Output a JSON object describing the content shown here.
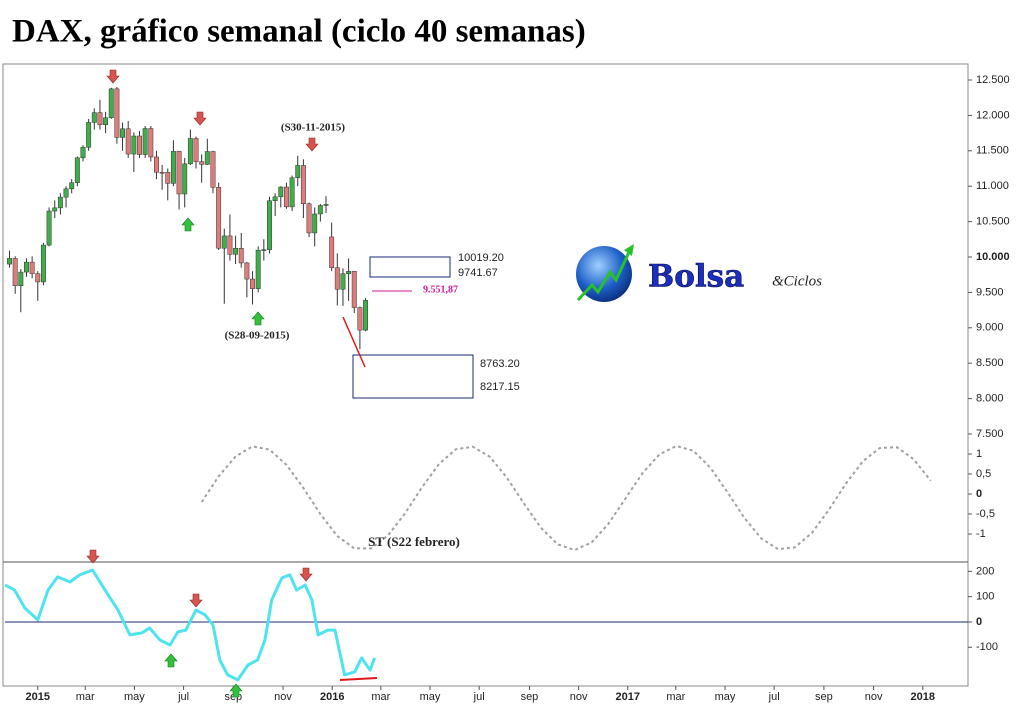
{
  "title": "DAX, gráfico semanal (ciclo 40 semanas)",
  "logo": {
    "name": "Bolsa",
    "sub": "&Ciclos"
  },
  "chart_data": [
    {
      "type": "candlestick",
      "x": [
        -5,
        -4,
        -3,
        -2,
        -1,
        0,
        1,
        2,
        3,
        4,
        5,
        6,
        7,
        8,
        9,
        10,
        11,
        12,
        13,
        14,
        15,
        16,
        17,
        18,
        19,
        20,
        21,
        22,
        23,
        24,
        25,
        26,
        27,
        28,
        29,
        30,
        31,
        32,
        33,
        34,
        35,
        36,
        37,
        38,
        39,
        40,
        41,
        42,
        43,
        44,
        45,
        46,
        47,
        48,
        49,
        50,
        51,
        52,
        53,
        54,
        55,
        56,
        57,
        58
      ],
      "open": [
        9900,
        9980,
        9594,
        9787,
        9927,
        9765,
        9648,
        10168,
        10649,
        10694,
        10846,
        10963,
        11050,
        11401,
        11550,
        11901,
        12039,
        11868,
        11967,
        12375,
        11689,
        11811,
        11454,
        11709,
        11447,
        11815,
        11413,
        11197,
        11196,
        11040,
        11492,
        10890,
        11316,
        11674,
        11347,
        11308,
        11490,
        10985,
        10124,
        10298,
        10038,
        10123,
        9916,
        9688,
        9553,
        10096,
        10104,
        10795,
        10850,
        10988,
        10708,
        11119,
        11293,
        10752,
        10340,
        10608,
        10727,
        10283,
        9849,
        9545,
        9764,
        9798,
        9286,
        8967
      ],
      "high": [
        10090,
        10010,
        9830,
        9980,
        10010,
        9800,
        10200,
        10700,
        10800,
        10900,
        11000,
        11100,
        11420,
        11580,
        11950,
        12100,
        12220,
        12050,
        12391,
        12400,
        11900,
        11920,
        11760,
        11780,
        11850,
        11850,
        11500,
        11300,
        11250,
        11650,
        11500,
        11400,
        11800,
        11700,
        11450,
        11670,
        11500,
        11050,
        10400,
        10600,
        10300,
        10340,
        9930,
        9800,
        10150,
        10250,
        10850,
        10900,
        11000,
        11050,
        11150,
        11430,
        11380,
        10770,
        10700,
        10750,
        10860,
        10485,
        10050,
        9840,
        9980,
        9800,
        9300,
        9420
      ],
      "low": [
        9850,
        9480,
        9220,
        9720,
        9700,
        9380,
        9600,
        10150,
        10550,
        10600,
        10700,
        10900,
        11000,
        11350,
        11500,
        11800,
        11800,
        11750,
        11950,
        11600,
        11500,
        11400,
        11200,
        11400,
        11400,
        11350,
        11100,
        10950,
        10800,
        11000,
        10670,
        10700,
        11300,
        11250,
        11050,
        11300,
        10900,
        10100,
        9340,
        9950,
        9900,
        9850,
        9430,
        9330,
        9500,
        9950,
        10050,
        10580,
        10700,
        10680,
        10650,
        11000,
        10550,
        10280,
        10150,
        10500,
        10620,
        9800,
        9315,
        9310,
        9380,
        9210,
        8699,
        8950
      ],
      "close": [
        9980,
        9594,
        9787,
        9927,
        9765,
        9648,
        10168,
        10649,
        10694,
        10846,
        10963,
        11050,
        11401,
        11550,
        11901,
        12039,
        11868,
        11967,
        12375,
        11689,
        11811,
        11454,
        11709,
        11447,
        11815,
        11413,
        11197,
        11196,
        11040,
        11492,
        10890,
        11316,
        11674,
        11347,
        11308,
        11490,
        10985,
        10124,
        10298,
        10038,
        10123,
        9916,
        9688,
        9553,
        10096,
        10104,
        10795,
        10850,
        10988,
        10708,
        11119,
        11293,
        10752,
        10340,
        10608,
        10727,
        10743,
        9849,
        9545,
        9764,
        9798,
        9286,
        8967,
        9388
      ],
      "up_color": "#3fae49",
      "down_color": "#e07b7b",
      "xlim": [
        -5.8,
        164.6
      ],
      "ylim": [
        7415,
        12712
      ],
      "yticks": [
        {
          "value": 12500,
          "label": "12.500"
        },
        {
          "value": 12000,
          "label": "12.000"
        },
        {
          "value": 11500,
          "label": "11.500"
        },
        {
          "value": 11000,
          "label": "11.000"
        },
        {
          "value": 10500,
          "label": "10.500"
        },
        {
          "value": 10000,
          "label": "10.000"
        },
        {
          "value": 9500,
          "label": "9.500"
        },
        {
          "value": 9000,
          "label": "9.000"
        },
        {
          "value": 8500,
          "label": "8.500"
        },
        {
          "value": 8000,
          "label": "8.000"
        },
        {
          "value": 7500,
          "label": "7.500"
        }
      ],
      "annotations": [
        "(S30-11-2015)",
        "(S28-09-2015)",
        "9.551,87",
        "10019.20",
        "9741.67",
        "8763.20",
        "8217.15"
      ]
    },
    {
      "type": "line",
      "annotation": "ST (S22 febrero)",
      "color": "#a0a0a0",
      "dashed": true,
      "x": [
        29,
        32,
        35,
        38,
        41,
        44,
        47,
        50,
        53,
        56,
        59,
        62,
        65,
        68,
        71,
        74,
        77,
        80,
        83,
        86,
        89,
        92,
        95,
        98,
        101,
        104,
        107,
        110,
        113,
        116,
        119,
        122,
        125,
        128,
        131,
        134,
        137,
        140,
        143,
        146,
        149,
        152,
        155,
        158
      ],
      "values": [
        -0.2,
        0.44,
        0.94,
        1.19,
        1.11,
        0.73,
        0.15,
        -0.5,
        -1.05,
        -1.36,
        -1.36,
        -1.03,
        -0.48,
        0.17,
        0.75,
        1.12,
        1.18,
        0.93,
        0.41,
        -0.23,
        -0.84,
        -1.26,
        -1.4,
        -1.21,
        -0.74,
        -0.11,
        0.52,
        0.99,
        1.2,
        1.08,
        0.66,
        0.05,
        -0.59,
        -1.11,
        -1.38,
        -1.33,
        -0.97,
        -0.39,
        0.26,
        0.82,
        1.15,
        1.17,
        0.87,
        0.33
      ],
      "xlim": [
        -5.8,
        164.6
      ],
      "ylim": [
        -1.7,
        1.35
      ],
      "yticks": [
        1,
        {
          "value": 0.5,
          "label": "0,5"
        },
        0,
        {
          "value": -0.5,
          "label": "-0,5"
        },
        -1
      ]
    },
    {
      "type": "line",
      "color": "#4fe3f0",
      "x": [
        -5.8,
        -4.1,
        -2.3,
        0,
        1.8,
        3.5,
        5.7,
        7.4,
        9.7,
        11.9,
        14.2,
        16.3,
        18.4,
        19.8,
        21.6,
        23.4,
        24.8,
        26.2,
        28,
        29.6,
        31,
        32.2,
        33.6,
        35.4,
        37.2,
        38.9,
        40.2,
        41.4,
        43.2,
        44.6,
        45.8,
        47.3,
        48.5,
        49.6,
        51.3,
        52.6,
        54.3,
        56.1,
        57.3,
        58.8,
        59.6
      ],
      "values": [
        146,
        126,
        55,
        8,
        126,
        178,
        158,
        186,
        205,
        126,
        47,
        -51,
        -43,
        -24,
        -71,
        -91,
        -39,
        -32,
        47,
        28,
        -12,
        -150,
        -209,
        -229,
        -170,
        -150,
        -71,
        87,
        174,
        186,
        126,
        146,
        87,
        -51,
        -32,
        -32,
        -209,
        -197,
        -142,
        -190,
        -142
      ],
      "xlim": [
        -5.8,
        164.6
      ],
      "ylim": [
        -253,
        233
      ],
      "yticks": [
        200,
        100,
        0,
        -100
      ],
      "xticks": [
        {
          "value": 0,
          "label": "2015"
        },
        {
          "value": 8.4,
          "label": "mar"
        },
        {
          "value": 17.1,
          "label": "may"
        },
        {
          "value": 25.8,
          "label": "jul"
        },
        {
          "value": 34.6,
          "label": "sep"
        },
        {
          "value": 43.4,
          "label": "nov"
        },
        {
          "value": 52.1,
          "label": "2016"
        },
        {
          "value": 60.7,
          "label": "mar"
        },
        {
          "value": 69.4,
          "label": "may"
        },
        {
          "value": 78.1,
          "label": "jul"
        },
        {
          "value": 87,
          "label": "sep"
        },
        {
          "value": 95.7,
          "label": "nov"
        },
        {
          "value": 104.4,
          "label": "2017"
        },
        {
          "value": 112.9,
          "label": "mar"
        },
        {
          "value": 121.6,
          "label": "may"
        },
        {
          "value": 130.3,
          "label": "jul"
        },
        {
          "value": 139.1,
          "label": "sep"
        },
        {
          "value": 147.9,
          "label": "nov"
        },
        {
          "value": 156.6,
          "label": "2018"
        }
      ]
    }
  ]
}
